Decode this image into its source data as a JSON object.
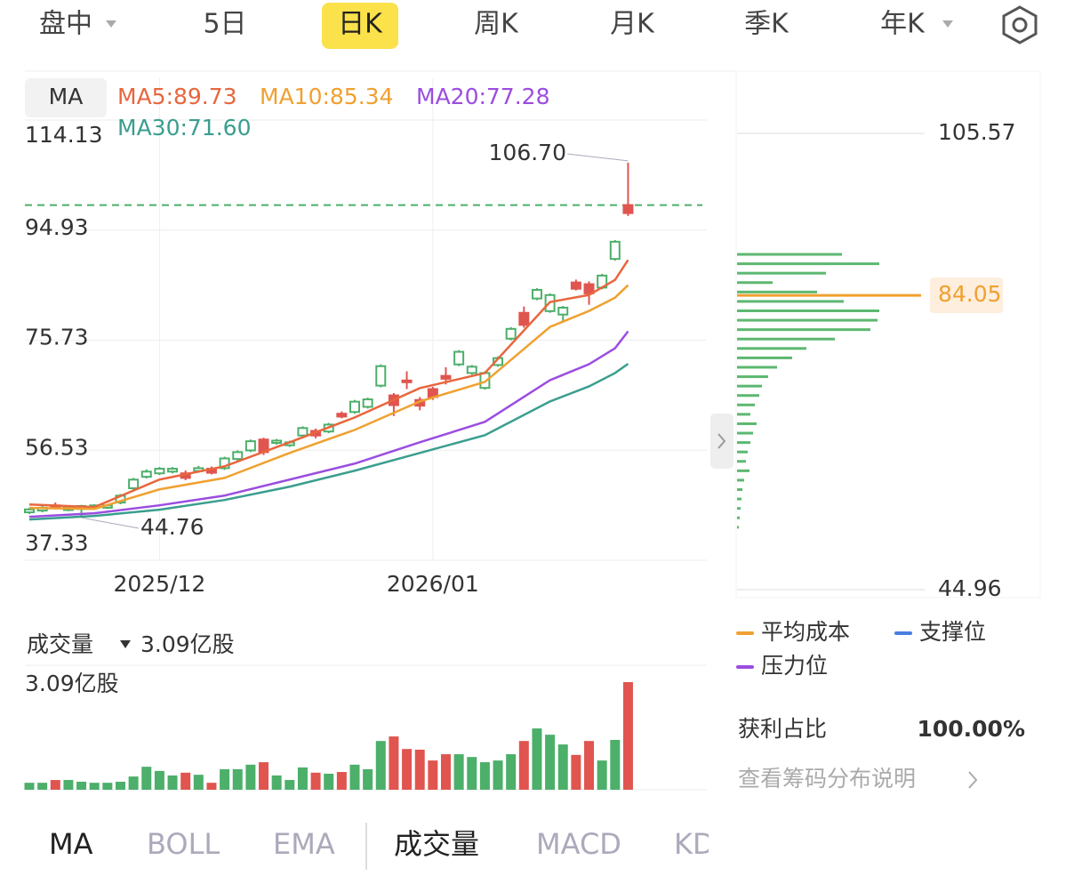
{
  "tabs": [
    "盘中",
    "5日",
    "日K",
    "周K",
    "月K",
    "季K",
    "年K"
  ],
  "active_tab": 2,
  "indicator_button": "MA",
  "chart_data": [
    {
      "type": "candlestick",
      "open": [
        46.2,
        46.5,
        46.5,
        46.6,
        46.8,
        46.9,
        46.9,
        48.6,
        51.4,
        52.8,
        53.3,
        53.3,
        51.7,
        53.4,
        52.6,
        55.1,
        56.2,
        58.1,
        56.2,
        58.2,
        57.9,
        60.4,
        59.1,
        61.0,
        62.4,
        65.0,
        65.4,
        71.2,
        64.4,
        68.4,
        64.3,
        65.8,
        69.0,
        73.7,
        71.1,
        70.0,
        72.6,
        77.7,
        78.4,
        84.5,
        83.6,
        81.4,
        84.7,
        83.9,
        87.0,
        92.9,
        97.9
      ],
      "close": [
        45.7,
        46.0,
        46.9,
        46.1,
        46.3,
        46.5,
        46.5,
        47.4,
        49.9,
        51.9,
        52.5,
        52.8,
        52.5,
        52.9,
        53.3,
        53.4,
        55.0,
        56.5,
        58.4,
        57.8,
        57.4,
        59.1,
        59.9,
        59.8,
        62.9,
        63.2,
        64.1,
        67.8,
        66.1,
        68.7,
        65.3,
        67.2,
        69.5,
        71.5,
        70.0,
        67.4,
        71.4,
        76.0,
        80.5,
        83.0,
        80.8,
        80.2,
        85.8,
        85.5,
        84.9,
        89.9,
        99.3
      ],
      "high": [
        46.5,
        46.8,
        47.4,
        46.9,
        47.0,
        47.1,
        47.1,
        48.9,
        51.7,
        53.2,
        53.6,
        53.6,
        53.0,
        53.8,
        53.7,
        55.4,
        56.5,
        58.4,
        58.7,
        58.5,
        58.2,
        60.7,
        60.3,
        61.3,
        63.3,
        65.3,
        65.7,
        71.5,
        66.5,
        70.3,
        65.8,
        67.6,
        71.0,
        74.0,
        71.4,
        70.3,
        72.9,
        78.0,
        81.6,
        84.8,
        83.9,
        81.7,
        86.3,
        86.0,
        87.3,
        93.2,
        106.7
      ],
      "low": [
        45.4,
        45.7,
        46.2,
        45.9,
        44.76,
        46.2,
        46.3,
        47.1,
        49.6,
        51.6,
        52.2,
        52.5,
        51.3,
        52.6,
        52.3,
        53.1,
        54.7,
        56.2,
        55.7,
        57.5,
        57.1,
        58.8,
        58.6,
        59.5,
        62.1,
        62.9,
        63.8,
        67.5,
        62.5,
        67.2,
        63.5,
        65.3,
        68.0,
        71.2,
        69.7,
        67.1,
        71.1,
        75.7,
        77.9,
        82.7,
        80.5,
        79.1,
        84.4,
        81.9,
        84.6,
        89.6,
        97.4
      ],
      "up_color": "#e0554f",
      "down_color": "#4caf6a",
      "series": [
        {
          "label": "MA5:89.73",
          "color": "#e8663d",
          "x": [
            0,
            5,
            10,
            15,
            20,
            25,
            30,
            35,
            40,
            43,
            45,
            46
          ],
          "values": [
            47.07,
            46.61,
            51.41,
            53.73,
            57.91,
            62.25,
            67.36,
            70.0,
            82.38,
            83.62,
            86.25,
            89.73
          ]
        },
        {
          "label": "MA10:85.34",
          "color": "#f0a030",
          "x": [
            0,
            5,
            10,
            15,
            20,
            25,
            30,
            35,
            40,
            43,
            45,
            46
          ],
          "values": [
            46.46,
            46.3,
            49.7,
            51.7,
            56.06,
            60.08,
            65.04,
            68.45,
            78.04,
            80.83,
            83.15,
            85.34
          ]
        },
        {
          "label": "MA20:77.28",
          "color": "#9b4de0",
          "x": [
            0,
            5,
            10,
            15,
            20,
            25,
            30,
            35,
            40,
            43,
            45,
            46
          ],
          "values": [
            44.91,
            45.53,
            46.92,
            48.62,
            51.41,
            54.2,
            57.91,
            61.48,
            68.75,
            71.54,
            74.33,
            77.28
          ]
        },
        {
          "label": "MA30:71.60",
          "color": "#3a9e8f",
          "x": [
            0,
            5,
            10,
            15,
            20,
            25,
            30,
            35,
            40,
            43,
            45,
            46
          ],
          "values": [
            44.44,
            45.06,
            46.15,
            47.85,
            50.17,
            52.96,
            56.06,
            59.15,
            65.04,
            67.67,
            70.0,
            71.6
          ]
        }
      ],
      "ylim": [
        37.33,
        114.13
      ],
      "yticks": [
        114.13,
        94.93,
        75.73,
        56.53,
        37.33
      ],
      "xticks": [
        {
          "value": 10,
          "label": "2025/12"
        },
        {
          "value": 31,
          "label": "2026/01"
        }
      ],
      "high_label": "106.70",
      "low_label": "44.76"
    },
    {
      "type": "bar",
      "title": "成交量",
      "value_label": "3.09亿股",
      "values": [
        0.2,
        0.2,
        0.28,
        0.28,
        0.23,
        0.2,
        0.2,
        0.23,
        0.38,
        0.66,
        0.54,
        0.41,
        0.49,
        0.43,
        0.2,
        0.59,
        0.59,
        0.72,
        0.79,
        0.41,
        0.28,
        0.64,
        0.49,
        0.46,
        0.51,
        0.72,
        0.59,
        1.4,
        1.53,
        1.17,
        1.15,
        0.84,
        1.02,
        1.02,
        0.94,
        0.79,
        0.84,
        1.02,
        1.4,
        1.76,
        1.58,
        1.3,
        1.0,
        1.4,
        0.84,
        1.43,
        3.09
      ],
      "ylim": [
        0,
        3.09
      ],
      "yticks": [
        {
          "value": 3.09,
          "label": "3.09亿股"
        }
      ]
    },
    {
      "type": "hbar",
      "color": "#5cb870",
      "prices": [
        89.5,
        88.25,
        87.0,
        85.75,
        84.5,
        83.25,
        82.0,
        80.75,
        79.5,
        78.25,
        77.0,
        75.75,
        74.5,
        73.25,
        72.0,
        70.75,
        69.5,
        68.25,
        67.0,
        65.75,
        64.5,
        63.25,
        62.0,
        60.75,
        59.5,
        58.25,
        57.0,
        55.75,
        54.5,
        53.25
      ],
      "values": [
        118,
        160,
        100,
        40,
        90,
        120,
        160,
        158,
        150,
        110,
        78,
        62,
        45,
        35,
        28,
        25,
        20,
        15,
        22,
        18,
        15,
        12,
        10,
        14,
        8,
        6,
        5,
        4,
        3,
        2
      ],
      "ylim": [
        44.96,
        105.57
      ],
      "yticks": [
        105.57,
        44.96
      ],
      "avg_cost": 84.05,
      "avg_color": "#f0a030"
    }
  ],
  "legend": [
    {
      "label": "平均成本",
      "color": "#f0a030"
    },
    {
      "label": "支撑位",
      "color": "#4a7ee0"
    },
    {
      "label": "压力位",
      "color": "#9b4de0"
    }
  ],
  "profit_label": "获利占比",
  "profit_value": "100.00%",
  "chip_help": "查看筹码分布说明",
  "indicator_tabs": [
    "MA",
    "BOLL",
    "EMA",
    "成交量",
    "MACD",
    "KD"
  ]
}
